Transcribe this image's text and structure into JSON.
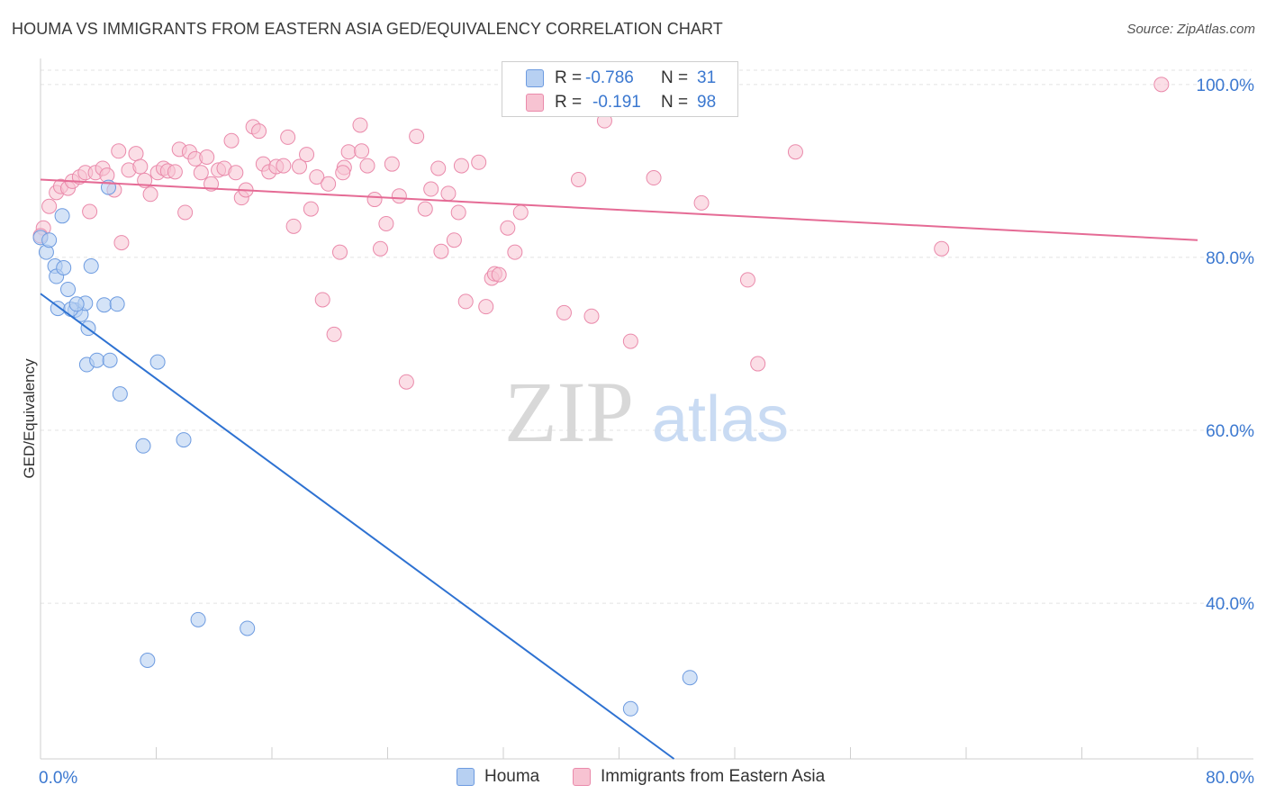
{
  "title": "HOUMA VS IMMIGRANTS FROM EASTERN ASIA GED/EQUIVALENCY CORRELATION CHART",
  "source": "Source: ZipAtlas.com",
  "watermark": {
    "zip": "ZIP",
    "atlas": "atlas"
  },
  "colors": {
    "houma_fill": "#b7d0f2",
    "houma_stroke": "#6d9be0",
    "houma_line": "#2e72d2",
    "imm_fill": "#f7c3d2",
    "imm_stroke": "#ea8aab",
    "imm_line": "#e56b95",
    "accent_text": "#3b78d0",
    "grid": "#e3e3e3"
  },
  "stats": {
    "houma": {
      "r_label": "R =",
      "r_value": "-0.786",
      "n_label": "N =",
      "n_value": "31"
    },
    "immigrants": {
      "r_label": "R =",
      "r_value": "-0.191",
      "n_label": "N =",
      "n_value": "98"
    }
  },
  "legend": {
    "houma": "Houma",
    "immigrants": "Immigrants from Eastern Asia"
  },
  "chart_data": {
    "type": "scatter",
    "title": "HOUMA VS IMMIGRANTS FROM EASTERN ASIA GED/EQUIVALENCY CORRELATION CHART",
    "xlabel": "",
    "ylabel": "GED/Equivalency",
    "xlim": [
      0,
      80
    ],
    "ylim": [
      22,
      103
    ],
    "x_tick_labels": [
      "0.0%",
      "80.0%"
    ],
    "y_ticks": [
      100,
      80,
      60,
      40
    ],
    "y_tick_labels": [
      "100.0%",
      "80.0%",
      "60.0%",
      "40.0%"
    ],
    "grid": true,
    "series": [
      {
        "name": "Houma",
        "r": -0.786,
        "n": 31,
        "trend": {
          "x": [
            0,
            43.8
          ],
          "y": [
            75.8,
            22
          ]
        },
        "points": [
          [
            0.0,
            82.3
          ],
          [
            0.4,
            80.6
          ],
          [
            0.6,
            82.0
          ],
          [
            1.0,
            79.0
          ],
          [
            1.1,
            77.8
          ],
          [
            1.6,
            78.8
          ],
          [
            1.5,
            84.8
          ],
          [
            1.9,
            76.3
          ],
          [
            2.4,
            73.9
          ],
          [
            2.8,
            73.4
          ],
          [
            1.2,
            74.1
          ],
          [
            3.1,
            74.7
          ],
          [
            3.3,
            71.8
          ],
          [
            3.5,
            79.0
          ],
          [
            4.4,
            74.5
          ],
          [
            5.3,
            74.6
          ],
          [
            4.7,
            88.1
          ],
          [
            3.2,
            67.6
          ],
          [
            3.9,
            68.1
          ],
          [
            4.8,
            68.1
          ],
          [
            5.5,
            64.2
          ],
          [
            7.1,
            58.2
          ],
          [
            8.1,
            67.9
          ],
          [
            9.9,
            58.9
          ],
          [
            10.9,
            38.1
          ],
          [
            14.3,
            37.1
          ],
          [
            7.4,
            33.4
          ],
          [
            2.1,
            74.0
          ],
          [
            2.5,
            74.6
          ],
          [
            40.8,
            27.8
          ],
          [
            44.9,
            31.4
          ]
        ]
      },
      {
        "name": "Immigrants from Eastern Asia",
        "r": -0.191,
        "n": 98,
        "trend": {
          "x": [
            0,
            80
          ],
          "y": [
            89.0,
            82.0
          ]
        },
        "points": [
          [
            0.6,
            85.9
          ],
          [
            1.1,
            87.5
          ],
          [
            1.4,
            88.2
          ],
          [
            1.9,
            88.0
          ],
          [
            2.2,
            88.8
          ],
          [
            2.7,
            89.3
          ],
          [
            3.1,
            89.8
          ],
          [
            3.4,
            85.3
          ],
          [
            3.8,
            89.8
          ],
          [
            4.3,
            90.3
          ],
          [
            4.6,
            89.5
          ],
          [
            5.1,
            87.8
          ],
          [
            5.6,
            81.7
          ],
          [
            5.4,
            92.3
          ],
          [
            6.1,
            90.1
          ],
          [
            6.6,
            92.0
          ],
          [
            6.9,
            90.5
          ],
          [
            7.2,
            88.9
          ],
          [
            7.6,
            87.3
          ],
          [
            8.1,
            89.8
          ],
          [
            8.5,
            90.3
          ],
          [
            8.8,
            90.0
          ],
          [
            9.3,
            89.9
          ],
          [
            9.6,
            92.5
          ],
          [
            10.0,
            85.2
          ],
          [
            10.3,
            92.2
          ],
          [
            10.7,
            91.4
          ],
          [
            11.1,
            89.8
          ],
          [
            11.5,
            91.6
          ],
          [
            11.8,
            88.5
          ],
          [
            12.3,
            90.1
          ],
          [
            12.7,
            90.3
          ],
          [
            13.2,
            93.5
          ],
          [
            13.5,
            89.8
          ],
          [
            13.9,
            86.9
          ],
          [
            14.2,
            87.8
          ],
          [
            14.7,
            95.1
          ],
          [
            15.1,
            94.6
          ],
          [
            15.4,
            90.8
          ],
          [
            15.8,
            89.9
          ],
          [
            16.3,
            90.5
          ],
          [
            16.8,
            90.6
          ],
          [
            17.1,
            93.9
          ],
          [
            17.5,
            83.6
          ],
          [
            17.9,
            90.5
          ],
          [
            18.4,
            91.9
          ],
          [
            18.7,
            85.6
          ],
          [
            19.1,
            89.3
          ],
          [
            19.5,
            75.1
          ],
          [
            19.9,
            88.5
          ],
          [
            20.3,
            71.1
          ],
          [
            20.7,
            80.6
          ],
          [
            21.0,
            90.4
          ],
          [
            21.3,
            92.2
          ],
          [
            22.1,
            95.3
          ],
          [
            22.2,
            92.3
          ],
          [
            22.6,
            90.6
          ],
          [
            23.1,
            86.7
          ],
          [
            23.5,
            81.0
          ],
          [
            23.9,
            83.9
          ],
          [
            24.3,
            90.8
          ],
          [
            24.8,
            87.1
          ],
          [
            25.3,
            65.6
          ],
          [
            26.0,
            94.0
          ],
          [
            26.6,
            85.6
          ],
          [
            27.0,
            87.9
          ],
          [
            27.5,
            90.3
          ],
          [
            27.7,
            80.7
          ],
          [
            28.2,
            87.4
          ],
          [
            28.6,
            82.0
          ],
          [
            28.9,
            85.2
          ],
          [
            29.1,
            90.6
          ],
          [
            29.4,
            74.9
          ],
          [
            30.3,
            91.0
          ],
          [
            30.8,
            74.3
          ],
          [
            31.2,
            77.6
          ],
          [
            31.4,
            78.1
          ],
          [
            31.7,
            78.0
          ],
          [
            32.3,
            83.4
          ],
          [
            32.8,
            80.6
          ],
          [
            33.2,
            85.2
          ],
          [
            36.2,
            73.6
          ],
          [
            37.2,
            89.0
          ],
          [
            38.1,
            73.2
          ],
          [
            40.8,
            70.3
          ],
          [
            42.4,
            89.2
          ],
          [
            43.0,
            100.0
          ],
          [
            45.7,
            86.3
          ],
          [
            48.9,
            77.4
          ],
          [
            49.6,
            67.7
          ],
          [
            52.2,
            92.2
          ],
          [
            62.3,
            81.0
          ],
          [
            77.5,
            100.0
          ],
          [
            38.0,
            100.0
          ],
          [
            39.0,
            95.8
          ],
          [
            20.9,
            89.8
          ],
          [
            0.2,
            83.4
          ],
          [
            0.0,
            82.5
          ]
        ]
      }
    ]
  }
}
